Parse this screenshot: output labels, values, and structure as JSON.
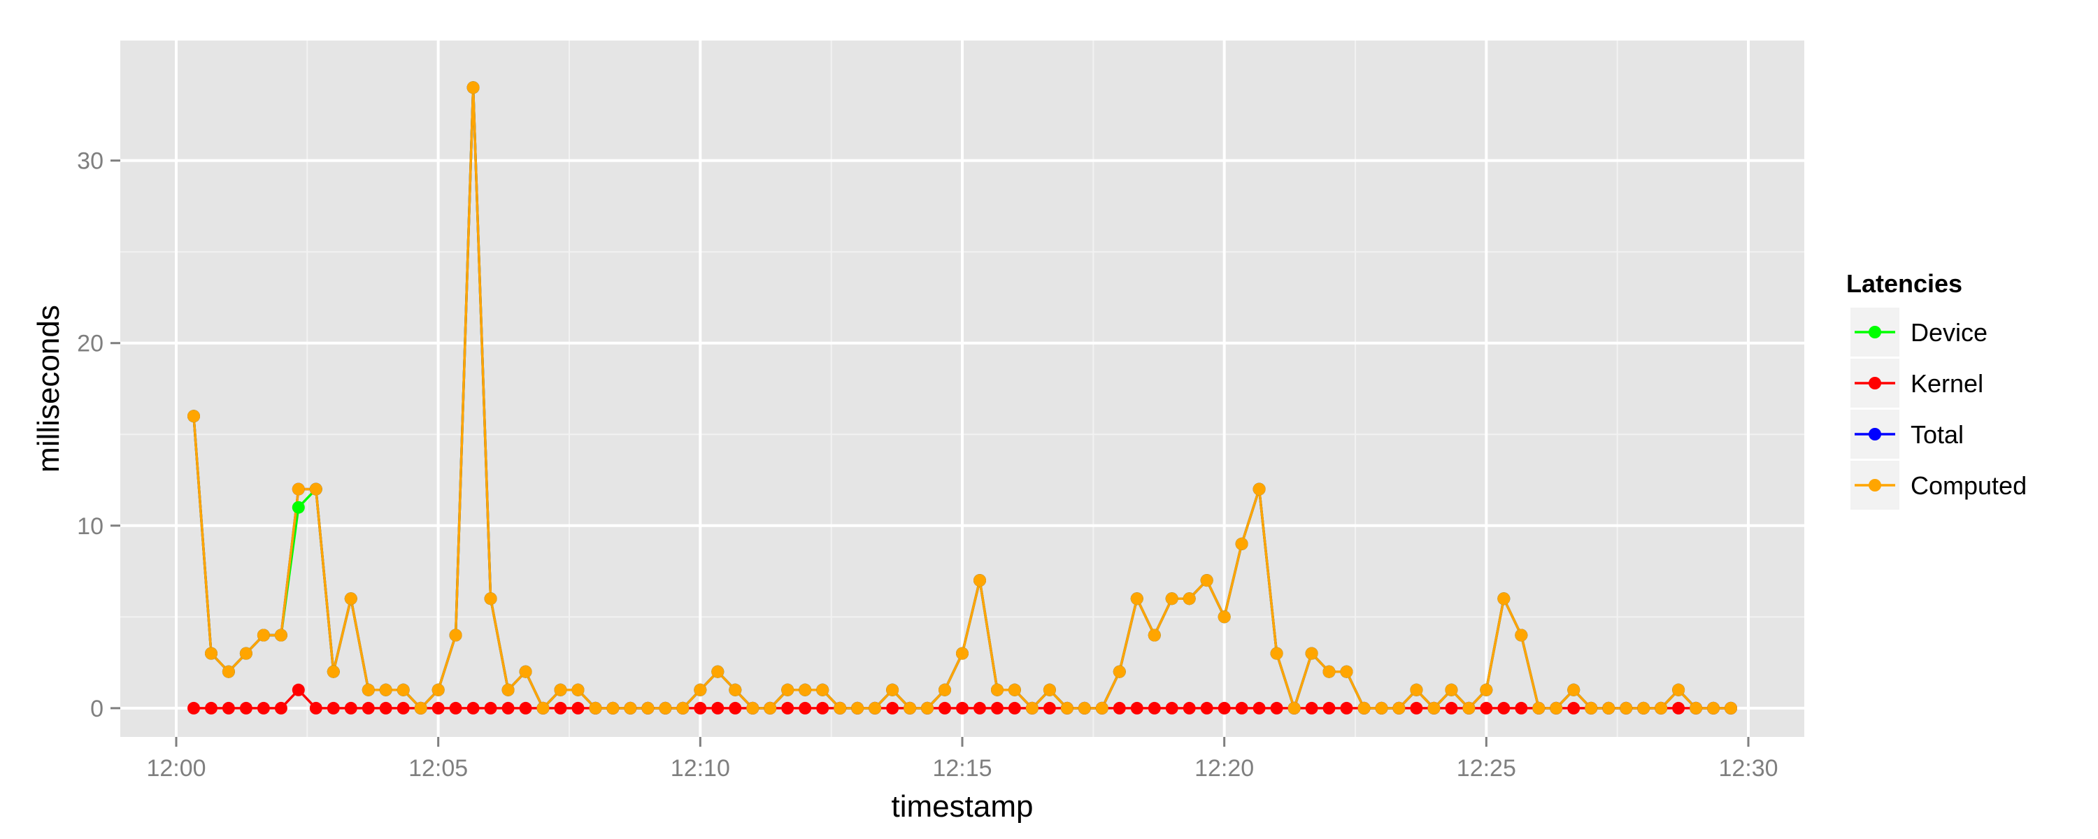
{
  "chart_data": {
    "type": "line",
    "xlabel": "timestamp",
    "ylabel": "milliseconds",
    "x_ticks": [
      "12:00",
      "12:05",
      "12:10",
      "12:15",
      "12:20",
      "12:25",
      "12:30"
    ],
    "y_ticks": [
      0,
      10,
      20,
      30
    ],
    "xlim": [
      "12:00",
      "12:30"
    ],
    "ylim": [
      0,
      35
    ],
    "grid": true,
    "legend": {
      "title": "Latencies",
      "position": "right"
    },
    "x": [
      "12:00:20",
      "12:00:40",
      "12:01:00",
      "12:01:20",
      "12:01:40",
      "12:02:00",
      "12:02:20",
      "12:02:40",
      "12:03:00",
      "12:03:20",
      "12:03:40",
      "12:04:00",
      "12:04:20",
      "12:04:40",
      "12:05:00",
      "12:05:20",
      "12:05:40",
      "12:06:00",
      "12:06:20",
      "12:06:40",
      "12:07:00",
      "12:07:20",
      "12:07:40",
      "12:08:00",
      "12:08:20",
      "12:08:40",
      "12:09:00",
      "12:09:20",
      "12:09:40",
      "12:10:00",
      "12:10:20",
      "12:10:40",
      "12:11:00",
      "12:11:20",
      "12:11:40",
      "12:12:00",
      "12:12:20",
      "12:12:40",
      "12:13:00",
      "12:13:20",
      "12:13:40",
      "12:14:00",
      "12:14:20",
      "12:14:40",
      "12:15:00",
      "12:15:20",
      "12:15:40",
      "12:16:00",
      "12:16:20",
      "12:16:40",
      "12:17:00",
      "12:17:20",
      "12:17:40",
      "12:18:00",
      "12:18:20",
      "12:18:40",
      "12:19:00",
      "12:19:20",
      "12:19:40",
      "12:20:00",
      "12:20:20",
      "12:20:40",
      "12:21:00",
      "12:21:20",
      "12:21:40",
      "12:22:00",
      "12:22:20",
      "12:22:40",
      "12:23:00",
      "12:23:20",
      "12:23:40",
      "12:24:00",
      "12:24:20",
      "12:24:40",
      "12:25:00",
      "12:25:20",
      "12:25:40",
      "12:26:00",
      "12:26:20",
      "12:26:40",
      "12:27:00",
      "12:27:20",
      "12:27:40",
      "12:28:00",
      "12:28:20",
      "12:28:40",
      "12:29:00",
      "12:29:20",
      "12:29:40"
    ],
    "series": [
      {
        "name": "Device",
        "color": "#00ff00",
        "values": [
          16,
          3,
          2,
          3,
          4,
          4,
          11,
          12,
          2,
          6,
          1,
          1,
          1,
          0,
          1,
          4,
          34,
          6,
          1,
          2,
          0,
          1,
          1,
          0,
          0,
          0,
          0,
          0,
          0,
          1,
          2,
          1,
          0,
          0,
          1,
          1,
          1,
          0,
          0,
          0,
          1,
          0,
          0,
          1,
          3,
          7,
          1,
          1,
          0,
          1,
          0,
          0,
          0,
          2,
          6,
          4,
          6,
          6,
          7,
          5,
          9,
          12,
          3,
          0,
          3,
          2,
          2,
          0,
          0,
          0,
          1,
          0,
          1,
          0,
          1,
          6,
          4,
          0,
          0,
          1,
          0,
          0,
          0,
          0,
          0,
          1,
          0,
          0,
          0
        ]
      },
      {
        "name": "Kernel",
        "color": "#ff0000",
        "values": [
          0,
          0,
          0,
          0,
          0,
          0,
          1,
          0,
          0,
          0,
          0,
          0,
          0,
          0,
          0,
          0,
          0,
          0,
          0,
          0,
          0,
          0,
          0,
          0,
          0,
          0,
          0,
          0,
          0,
          0,
          0,
          0,
          0,
          0,
          0,
          0,
          0,
          0,
          0,
          0,
          0,
          0,
          0,
          0,
          0,
          0,
          0,
          0,
          0,
          0,
          0,
          0,
          0,
          0,
          0,
          0,
          0,
          0,
          0,
          0,
          0,
          0,
          0,
          0,
          0,
          0,
          0,
          0,
          0,
          0,
          0,
          0,
          0,
          0,
          0,
          0,
          0,
          0,
          0,
          0,
          0,
          0,
          0,
          0,
          0,
          0,
          0,
          0,
          0
        ]
      },
      {
        "name": "Total",
        "color": "#0000ff",
        "values": [
          16,
          3,
          2,
          3,
          4,
          4,
          12,
          12,
          2,
          6,
          1,
          1,
          1,
          0,
          1,
          4,
          34,
          6,
          1,
          2,
          0,
          1,
          1,
          0,
          0,
          0,
          0,
          0,
          0,
          1,
          2,
          1,
          0,
          0,
          1,
          1,
          1,
          0,
          0,
          0,
          1,
          0,
          0,
          1,
          3,
          7,
          1,
          1,
          0,
          1,
          0,
          0,
          0,
          2,
          6,
          4,
          6,
          6,
          7,
          5,
          9,
          12,
          3,
          0,
          3,
          2,
          2,
          0,
          0,
          0,
          1,
          0,
          1,
          0,
          1,
          6,
          4,
          0,
          0,
          1,
          0,
          0,
          0,
          0,
          0,
          1,
          0,
          0,
          0
        ]
      },
      {
        "name": "Computed",
        "color": "#ffa500",
        "values": [
          16,
          3,
          2,
          3,
          4,
          4,
          12,
          12,
          2,
          6,
          1,
          1,
          1,
          0,
          1,
          4,
          34,
          6,
          1,
          2,
          0,
          1,
          1,
          0,
          0,
          0,
          0,
          0,
          0,
          1,
          2,
          1,
          0,
          0,
          1,
          1,
          1,
          0,
          0,
          0,
          1,
          0,
          0,
          1,
          3,
          7,
          1,
          1,
          0,
          1,
          0,
          0,
          0,
          2,
          6,
          4,
          6,
          6,
          7,
          5,
          9,
          12,
          3,
          0,
          3,
          2,
          2,
          0,
          0,
          0,
          1,
          0,
          1,
          0,
          1,
          6,
          4,
          0,
          0,
          1,
          0,
          0,
          0,
          0,
          0,
          1,
          0,
          0,
          0
        ]
      }
    ]
  }
}
